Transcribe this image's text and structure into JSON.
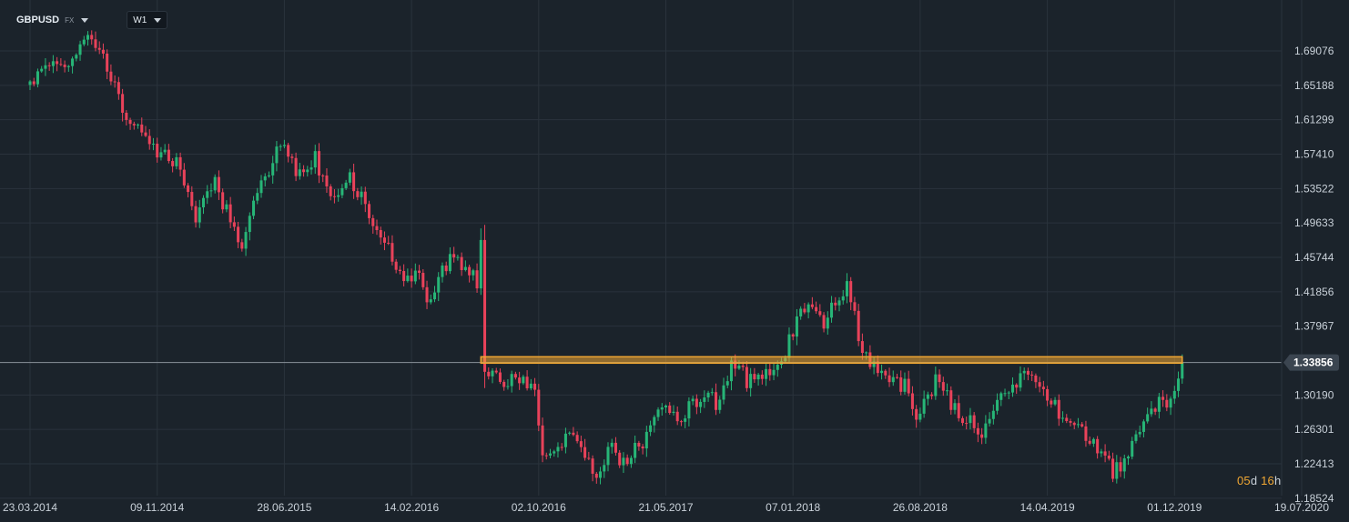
{
  "header": {
    "symbol": "GBPUSD",
    "instrument_type": "FX",
    "timeframe": "W1"
  },
  "countdown": {
    "days_value": "05",
    "days_unit": "d",
    "hours_value": "16",
    "hours_unit": "h"
  },
  "colors": {
    "background": "#1b232b",
    "grid": "#2a333c",
    "bull": "#27b577",
    "bear": "#e8425a",
    "resistance_line": "#f0a733",
    "price_line": "#8a929a",
    "price_tag": "#3b4550"
  },
  "chart_data": {
    "type": "candlestick",
    "title": "",
    "symbol": "GBPUSD",
    "timeframe": "W1",
    "price_scale": {
      "ticks": [
        "1.69076",
        "1.65188",
        "1.61299",
        "1.57410",
        "1.53522",
        "1.49633",
        "1.45744",
        "1.41856",
        "1.37967",
        "1.30190",
        "1.26301",
        "1.22413",
        "1.18524"
      ],
      "tick_values": [
        1.69076,
        1.65188,
        1.61299,
        1.5741,
        1.53522,
        1.49633,
        1.45744,
        1.41856,
        1.37967,
        1.3019,
        1.26301,
        1.22413,
        1.18524
      ]
    },
    "time_scale": {
      "ticks": [
        "23.03.2014",
        "09.11.2014",
        "28.06.2015",
        "14.02.2016",
        "02.10.2016",
        "21.05.2017",
        "07.01.2018",
        "26.08.2018",
        "14.04.2019",
        "01.12.2019",
        "19.07.2020"
      ],
      "start_date": "2014-03-23",
      "end_date": "2020-07-19"
    },
    "current_price": "1.33856",
    "current_price_value": 1.33856,
    "resistance_level": 1.3415,
    "resistance_from": "2016-06-19",
    "resistance_to": "2019-12-15",
    "path_anchors": [
      [
        "2014-03-23",
        1.655
      ],
      [
        "2014-05-04",
        1.685
      ],
      [
        "2014-06-01",
        1.675
      ],
      [
        "2014-07-06",
        1.712
      ],
      [
        "2014-08-03",
        1.685
      ],
      [
        "2014-09-07",
        1.625
      ],
      [
        "2014-10-05",
        1.605
      ],
      [
        "2014-11-09",
        1.575
      ],
      [
        "2014-12-14",
        1.565
      ],
      [
        "2015-01-18",
        1.505
      ],
      [
        "2015-02-22",
        1.54
      ],
      [
        "2015-04-12",
        1.468
      ],
      [
        "2015-05-10",
        1.528
      ],
      [
        "2015-06-21",
        1.587
      ],
      [
        "2015-07-19",
        1.555
      ],
      [
        "2015-08-23",
        1.57
      ],
      [
        "2015-09-20",
        1.52
      ],
      [
        "2015-10-25",
        1.545
      ],
      [
        "2015-11-29",
        1.508
      ],
      [
        "2016-01-03",
        1.467
      ],
      [
        "2016-01-31",
        1.425
      ],
      [
        "2016-02-21",
        1.445
      ],
      [
        "2016-03-13",
        1.405
      ],
      [
        "2016-04-03",
        1.435
      ],
      [
        "2016-05-01",
        1.462
      ],
      [
        "2016-06-12",
        1.43
      ],
      [
        "2016-06-19",
        1.47
      ],
      [
        "2016-06-26",
        1.335
      ],
      [
        "2016-07-31",
        1.315
      ],
      [
        "2016-08-28",
        1.32
      ],
      [
        "2016-09-25",
        1.305
      ],
      [
        "2016-10-09",
        1.235
      ],
      [
        "2016-11-13",
        1.245
      ],
      [
        "2016-12-04",
        1.262
      ],
      [
        "2017-01-15",
        1.205
      ],
      [
        "2017-02-05",
        1.245
      ],
      [
        "2017-03-05",
        1.225
      ],
      [
        "2017-04-09",
        1.25
      ],
      [
        "2017-05-14",
        1.292
      ],
      [
        "2017-06-18",
        1.278
      ],
      [
        "2017-07-30",
        1.305
      ],
      [
        "2017-08-27",
        1.288
      ],
      [
        "2017-09-17",
        1.345
      ],
      [
        "2017-10-15",
        1.318
      ],
      [
        "2017-11-19",
        1.325
      ],
      [
        "2017-12-17",
        1.342
      ],
      [
        "2018-01-14",
        1.382
      ],
      [
        "2018-02-04",
        1.412
      ],
      [
        "2018-03-04",
        1.385
      ],
      [
        "2018-04-15",
        1.425
      ],
      [
        "2018-05-13",
        1.352
      ],
      [
        "2018-06-24",
        1.322
      ],
      [
        "2018-07-29",
        1.312
      ],
      [
        "2018-08-19",
        1.275
      ],
      [
        "2018-09-23",
        1.318
      ],
      [
        "2018-10-28",
        1.285
      ],
      [
        "2018-12-16",
        1.262
      ],
      [
        "2019-01-27",
        1.308
      ],
      [
        "2019-03-03",
        1.325
      ],
      [
        "2019-04-07",
        1.305
      ],
      [
        "2019-05-26",
        1.268
      ],
      [
        "2019-07-07",
        1.252
      ],
      [
        "2019-08-11",
        1.215
      ],
      [
        "2019-09-08",
        1.232
      ],
      [
        "2019-10-20",
        1.292
      ],
      [
        "2019-11-24",
        1.29
      ],
      [
        "2019-12-15",
        1.338
      ]
    ]
  }
}
